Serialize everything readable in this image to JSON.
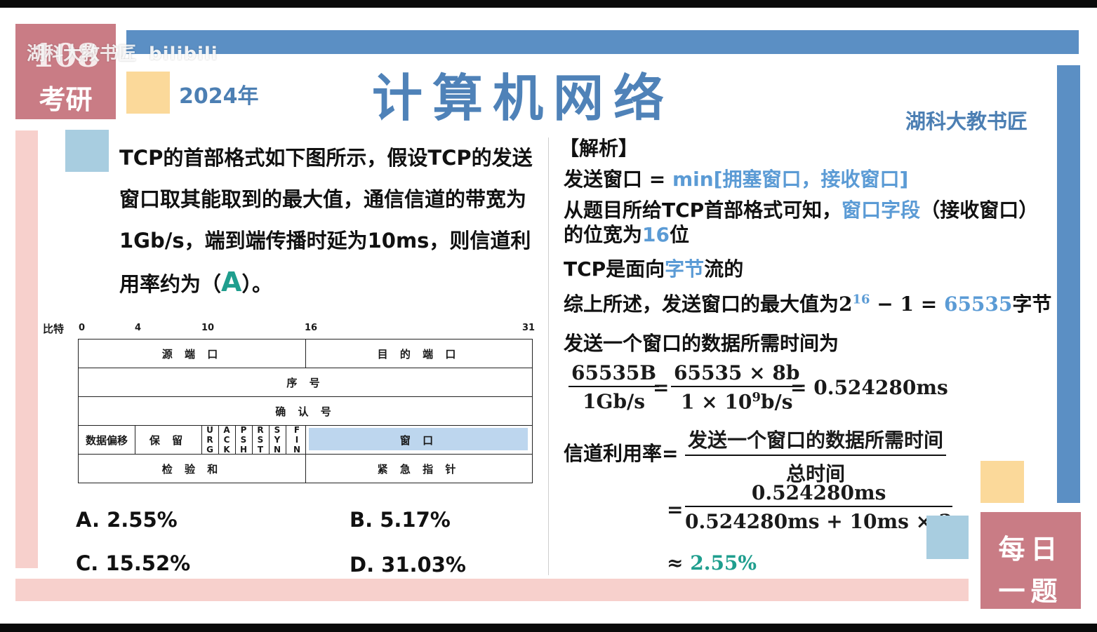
{
  "watermark": {
    "text": "湖科大教书匠",
    "logo": "bilibili"
  },
  "badge": {
    "number": "108",
    "text": "考研"
  },
  "year": "2024年",
  "title": "计算机网络",
  "author": "湖科大教书匠",
  "question": {
    "text": "TCP的首部格式如下图所示，假设TCP的发送窗口取其能取到的最大值，通信信道的带宽为1Gb/s，端到端传播时延为10ms，则信道利用率约为（",
    "answer": "A",
    "tail": "）。"
  },
  "tcp_header": {
    "bits_label": "比特",
    "bit_marks": [
      "0",
      "4",
      "10",
      "16",
      "31"
    ],
    "row1": {
      "left": "源 端 口",
      "right": "目 的 端 口"
    },
    "row2": "序 号",
    "row3": "确 认 号",
    "row4": {
      "offset": "数据偏移",
      "reserved": "保 留",
      "flags": [
        "URG",
        "ACK",
        "PSH",
        "RST",
        "SYN",
        "FIN"
      ],
      "window": "窗 口"
    },
    "row5": {
      "left": "检 验 和",
      "right": "紧 急 指 针"
    }
  },
  "options": {
    "a": "A. 2.55%",
    "b": "B. 5.17%",
    "c": "C. 15.52%",
    "d": "D. 31.03%"
  },
  "analysis": {
    "heading": "【解析】",
    "line1_pre": "发送窗口 = ",
    "line1_hl": "min[拥塞窗口，接收窗口]",
    "line2_pre": "从题目所给TCP首部格式可知，",
    "line2_hl": "窗口字段",
    "line2_post": "（接收窗口）",
    "line3_pre": "的位宽为",
    "line3_num": "16",
    "line3_post": "位",
    "line4_pre": "TCP是面向",
    "line4_hl": "字节",
    "line4_post": "流的",
    "line5_pre": "综上所述，发送窗口的最大值为",
    "line5_base": "2",
    "line5_exp": "16",
    "line5_rest": " − 1 = ",
    "line5_num": "65535",
    "line5_post": "字节",
    "line6": "发送一个窗口的数据所需时间为",
    "f1_num": "65535B",
    "f1_den": "1Gb/s",
    "eq1": "=",
    "f2_num": "65535 × 8b",
    "f2_den_pre": "1 × 10",
    "f2_den_exp": "9",
    "f2_den_post": "b/s",
    "result1": "= 0.524280ms",
    "util_label": "信道利用率=",
    "util_num": "发送一个窗口的数据所需时间",
    "util_den": "总时间",
    "eq2": "=",
    "f3_num": "0.524280ms",
    "f3_den": "0.524280ms + 10ms × 2",
    "approx": "≈ ",
    "approx_val": "2.55%"
  },
  "daily_badge": {
    "line1": "每日",
    "line2": "一题"
  }
}
